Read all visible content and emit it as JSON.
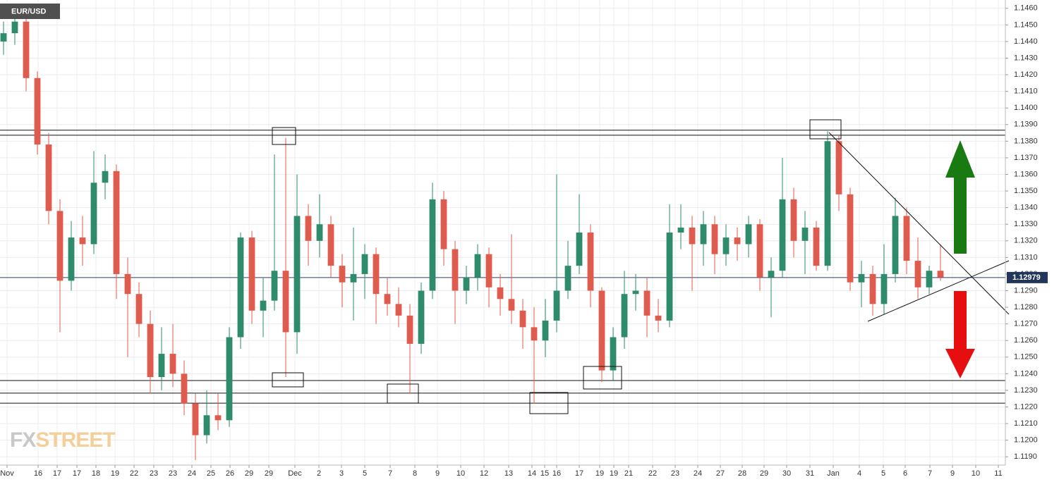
{
  "chart_data": {
    "type": "candlestick",
    "title": "EUR/USD",
    "up_color": "#2e8b6b",
    "down_color": "#de5b4d",
    "xlim": [
      -0.3125,
      88.75
    ],
    "ylim": [
      1.1185,
      1.1465
    ],
    "grid": true,
    "xticks": [
      {
        "value": 0.3125,
        "label": "Nov"
      },
      {
        "value": 3.0625,
        "label": "16"
      },
      {
        "value": 4.75,
        "label": "17"
      },
      {
        "value": 6.5,
        "label": "17"
      },
      {
        "value": 8.1875,
        "label": "18"
      },
      {
        "value": 9.875,
        "label": "19"
      },
      {
        "value": 11.5625,
        "label": "22"
      },
      {
        "value": 13.3125,
        "label": "23"
      },
      {
        "value": 15,
        "label": "23"
      },
      {
        "value": 16.6875,
        "label": "24"
      },
      {
        "value": 18.375,
        "label": "25"
      },
      {
        "value": 20.0625,
        "label": "26"
      },
      {
        "value": 21.75,
        "label": "29"
      },
      {
        "value": 23.5,
        "label": "29"
      },
      {
        "value": 25.8125,
        "label": "Dec"
      },
      {
        "value": 27.9375,
        "label": "2"
      },
      {
        "value": 29.9375,
        "label": "3"
      },
      {
        "value": 32,
        "label": "5"
      },
      {
        "value": 34.25,
        "label": "7"
      },
      {
        "value": 36.4375,
        "label": "8"
      },
      {
        "value": 38.4375,
        "label": "9"
      },
      {
        "value": 40.5,
        "label": "10"
      },
      {
        "value": 42.5625,
        "label": "12"
      },
      {
        "value": 44.75,
        "label": "13"
      },
      {
        "value": 46.8125,
        "label": "14"
      },
      {
        "value": 47.9375,
        "label": "15"
      },
      {
        "value": 49,
        "label": "16"
      },
      {
        "value": 51,
        "label": "17"
      },
      {
        "value": 52.8125,
        "label": "19"
      },
      {
        "value": 54.0625,
        "label": "19"
      },
      {
        "value": 55.375,
        "label": "21"
      },
      {
        "value": 57.5,
        "label": "22"
      },
      {
        "value": 59.5,
        "label": "23"
      },
      {
        "value": 61.5,
        "label": "24"
      },
      {
        "value": 63.5,
        "label": "27"
      },
      {
        "value": 65.4375,
        "label": "28"
      },
      {
        "value": 67.375,
        "label": "29"
      },
      {
        "value": 69.375,
        "label": "30"
      },
      {
        "value": 71.4375,
        "label": "31"
      },
      {
        "value": 73.5,
        "label": "Jan"
      },
      {
        "value": 75.8125,
        "label": "4"
      },
      {
        "value": 77.9375,
        "label": "5"
      },
      {
        "value": 79.875,
        "label": "6"
      },
      {
        "value": 82.0625,
        "label": "7"
      },
      {
        "value": 84.0625,
        "label": "9"
      },
      {
        "value": 86.125,
        "label": "10"
      },
      {
        "value": 88.125,
        "label": "11"
      }
    ],
    "yticks": [
      {
        "value": 1.119,
        "label": "1.1190"
      },
      {
        "value": 1.12,
        "label": "1.1200"
      },
      {
        "value": 1.121,
        "label": "1.1210"
      },
      {
        "value": 1.122,
        "label": "1.1220"
      },
      {
        "value": 1.123,
        "label": "1.1230"
      },
      {
        "value": 1.124,
        "label": "1.1240"
      },
      {
        "value": 1.125,
        "label": "1.1250"
      },
      {
        "value": 1.126,
        "label": "1.1260"
      },
      {
        "value": 1.127,
        "label": "1.1270"
      },
      {
        "value": 1.128,
        "label": "1.1280"
      },
      {
        "value": 1.129,
        "label": "1.1290"
      },
      {
        "value": 1.13,
        "label": "1.1300"
      },
      {
        "value": 1.131,
        "label": "1.1310"
      },
      {
        "value": 1.132,
        "label": "1.1320"
      },
      {
        "value": 1.133,
        "label": "1.1330"
      },
      {
        "value": 1.134,
        "label": "1.1340"
      },
      {
        "value": 1.135,
        "label": "1.1350"
      },
      {
        "value": 1.136,
        "label": "1.1360"
      },
      {
        "value": 1.137,
        "label": "1.1370"
      },
      {
        "value": 1.138,
        "label": "1.1380"
      },
      {
        "value": 1.139,
        "label": "1.1390"
      },
      {
        "value": 1.14,
        "label": "1.1400"
      },
      {
        "value": 1.141,
        "label": "1.1410"
      },
      {
        "value": 1.142,
        "label": "1.1420"
      },
      {
        "value": 1.143,
        "label": "1.1430"
      },
      {
        "value": 1.144,
        "label": "1.1440"
      },
      {
        "value": 1.145,
        "label": "1.1450"
      },
      {
        "value": 1.146,
        "label": "1.1460"
      }
    ],
    "x": [
      0,
      1,
      2,
      3,
      4,
      5,
      6,
      7,
      8,
      9,
      10,
      11,
      12,
      13,
      14,
      15,
      16,
      17,
      18,
      19,
      20,
      21,
      22,
      23,
      24,
      25,
      26,
      27,
      28,
      29,
      30,
      31,
      32,
      33,
      34,
      35,
      36,
      37,
      38,
      39,
      40,
      41,
      42,
      43,
      44,
      45,
      46,
      47,
      48,
      49,
      50,
      51,
      52,
      53,
      54,
      55,
      56,
      57,
      58,
      59,
      60,
      61,
      62,
      63,
      64,
      65,
      66,
      67,
      68,
      69,
      70,
      71,
      72,
      73,
      74,
      75,
      76,
      77,
      78,
      79,
      80,
      81,
      82,
      83
    ],
    "open": [
      1.144,
      1.1445,
      1.1452,
      1.1418,
      1.1378,
      1.1338,
      1.1296,
      1.1322,
      1.1318,
      1.1355,
      1.1362,
      1.13,
      1.1288,
      1.127,
      1.1238,
      1.1252,
      1.124,
      1.1222,
      1.1203,
      1.1215,
      1.1212,
      1.1262,
      1.1322,
      1.1278,
      1.1284,
      1.1302,
      1.1265,
      1.1335,
      1.132,
      1.133,
      1.1305,
      1.1295,
      1.13,
      1.1312,
      1.1288,
      1.1282,
      1.1275,
      1.1258,
      1.129,
      1.1345,
      1.1315,
      1.129,
      1.1298,
      1.1312,
      1.1292,
      1.1285,
      1.1278,
      1.1268,
      1.126,
      1.1272,
      1.129,
      1.1305,
      1.1325,
      1.129,
      1.1242,
      1.1262,
      1.1288,
      1.129,
      1.1275,
      1.1272,
      1.1325,
      1.1328,
      1.1318,
      1.133,
      1.1312,
      1.1322,
      1.1318,
      1.133,
      1.1298,
      1.1302,
      1.1345,
      1.132,
      1.1328,
      1.1305,
      1.138,
      1.1348,
      1.1295,
      1.13,
      1.1282,
      1.13,
      1.1335,
      1.1308,
      1.1292,
      1.1302
    ],
    "high": [
      1.1452,
      1.1462,
      1.146,
      1.1422,
      1.1385,
      1.1345,
      1.1332,
      1.1335,
      1.1374,
      1.1372,
      1.1366,
      1.131,
      1.1295,
      1.1278,
      1.1268,
      1.127,
      1.1248,
      1.1228,
      1.123,
      1.1228,
      1.1268,
      1.1325,
      1.1326,
      1.1298,
      1.1372,
      1.1382,
      1.136,
      1.1342,
      1.1348,
      1.1335,
      1.1312,
      1.1328,
      1.1318,
      1.1316,
      1.1298,
      1.1292,
      1.1282,
      1.1295,
      1.1355,
      1.135,
      1.132,
      1.1305,
      1.1318,
      1.1316,
      1.13,
      1.1324,
      1.1285,
      1.128,
      1.1285,
      1.136,
      1.132,
      1.1348,
      1.133,
      1.1292,
      1.1268,
      1.1302,
      1.13,
      1.1298,
      1.1285,
      1.1342,
      1.1342,
      1.1335,
      1.1338,
      1.1335,
      1.133,
      1.1328,
      1.1335,
      1.1333,
      1.131,
      1.137,
      1.1352,
      1.1338,
      1.1332,
      1.1386,
      1.1384,
      1.1352,
      1.1308,
      1.1305,
      1.1318,
      1.1346,
      1.134,
      1.1322,
      1.1305,
      1.1318
    ],
    "low": [
      1.1432,
      1.1438,
      1.141,
      1.1372,
      1.133,
      1.1265,
      1.129,
      1.1305,
      1.1312,
      1.1345,
      1.1285,
      1.125,
      1.1262,
      1.1228,
      1.123,
      1.1232,
      1.1215,
      1.1188,
      1.1198,
      1.1206,
      1.1208,
      1.1255,
      1.127,
      1.1262,
      1.1278,
      1.1238,
      1.1252,
      1.1305,
      1.131,
      1.1298,
      1.128,
      1.1272,
      1.1285,
      1.127,
      1.1275,
      1.1268,
      1.1228,
      1.1252,
      1.1285,
      1.1305,
      1.127,
      1.1282,
      1.129,
      1.128,
      1.1275,
      1.127,
      1.1255,
      1.1222,
      1.125,
      1.1265,
      1.1285,
      1.13,
      1.128,
      1.1235,
      1.1236,
      1.1255,
      1.1278,
      1.1262,
      1.1265,
      1.1268,
      1.1315,
      1.129,
      1.1305,
      1.13,
      1.1305,
      1.1308,
      1.131,
      1.129,
      1.1274,
      1.1298,
      1.131,
      1.13,
      1.1302,
      1.1302,
      1.1338,
      1.129,
      1.128,
      1.1275,
      1.1276,
      1.1295,
      1.13,
      1.1285,
      1.1288,
      1.1296
    ],
    "close": [
      1.1445,
      1.1452,
      1.1418,
      1.1378,
      1.1338,
      1.1296,
      1.1322,
      1.1318,
      1.1355,
      1.1362,
      1.13,
      1.1288,
      1.127,
      1.1238,
      1.1252,
      1.124,
      1.1222,
      1.1203,
      1.1215,
      1.1212,
      1.1262,
      1.1322,
      1.1278,
      1.1284,
      1.1302,
      1.1265,
      1.1335,
      1.132,
      1.133,
      1.1305,
      1.1295,
      1.13,
      1.1312,
      1.1288,
      1.1282,
      1.1275,
      1.1258,
      1.129,
      1.1345,
      1.1315,
      1.129,
      1.1298,
      1.1312,
      1.1292,
      1.1285,
      1.1278,
      1.1268,
      1.126,
      1.1272,
      1.129,
      1.1305,
      1.1325,
      1.129,
      1.1242,
      1.1262,
      1.1288,
      1.129,
      1.1275,
      1.1272,
      1.1325,
      1.1328,
      1.1318,
      1.133,
      1.1312,
      1.1322,
      1.1318,
      1.133,
      1.1298,
      1.1302,
      1.1345,
      1.132,
      1.1328,
      1.1305,
      1.138,
      1.1348,
      1.1295,
      1.13,
      1.1282,
      1.13,
      1.1335,
      1.1308,
      1.1292,
      1.1302,
      1.1298
    ],
    "levels": [
      1.13866,
      1.13836,
      1.12359,
      1.12283,
      1.12223
    ],
    "last_price": 1.12979,
    "logo": {
      "fx": "FX",
      "street": "STREET"
    }
  }
}
